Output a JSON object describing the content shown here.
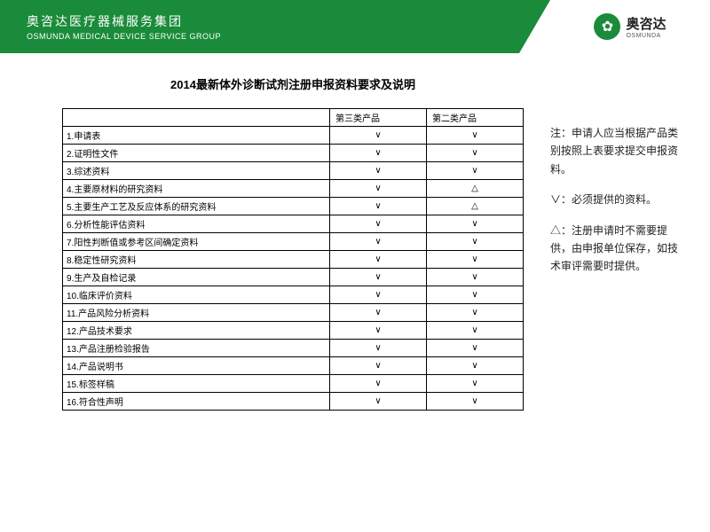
{
  "header": {
    "company_cn": "奥咨达医疗器械服务集团",
    "company_en": "OSMUNDA MEDICAL DEVICE SERVICE GROUP",
    "logo_cn": "奥咨达",
    "logo_en": "OSMUNDA"
  },
  "title": "2014最新体外诊断试剂注册申报资料要求及说明",
  "table": {
    "columns": [
      "",
      "第三类产品",
      "第二类产品"
    ],
    "rows": [
      [
        "1.申请表",
        "∨",
        "∨"
      ],
      [
        "2.证明性文件",
        "∨",
        "∨"
      ],
      [
        "3.综述资料",
        "∨",
        "∨"
      ],
      [
        "4.主要原材料的研究资料",
        "∨",
        "△"
      ],
      [
        "5.主要生产工艺及反应体系的研究资料",
        "∨",
        "△"
      ],
      [
        "6.分析性能评估资料",
        "∨",
        "∨"
      ],
      [
        "7.阳性判断值或参考区间确定资料",
        "∨",
        "∨"
      ],
      [
        "8.稳定性研究资料",
        "∨",
        "∨"
      ],
      [
        "9.生产及自检记录",
        "∨",
        "∨"
      ],
      [
        "10.临床评价资料",
        "∨",
        "∨"
      ],
      [
        "11.产品风险分析资料",
        "∨",
        "∨"
      ],
      [
        "12.产品技术要求",
        "∨",
        "∨"
      ],
      [
        "13.产品注册检验报告",
        "∨",
        "∨"
      ],
      [
        "14.产品说明书",
        "∨",
        "∨"
      ],
      [
        "15.标签样稿",
        "∨",
        "∨"
      ],
      [
        "16.符合性声明",
        "∨",
        "∨"
      ]
    ]
  },
  "notes": {
    "n1": "注：申请人应当根据产品类别按照上表要求提交申报资料。",
    "n2": "∨：必须提供的资料。",
    "n3": "△：注册申请时不需要提供，由申报单位保存，如技术审评需要时提供。"
  },
  "colors": {
    "brand": "#1a8b3a",
    "background": "#ffffff",
    "text": "#000000"
  }
}
